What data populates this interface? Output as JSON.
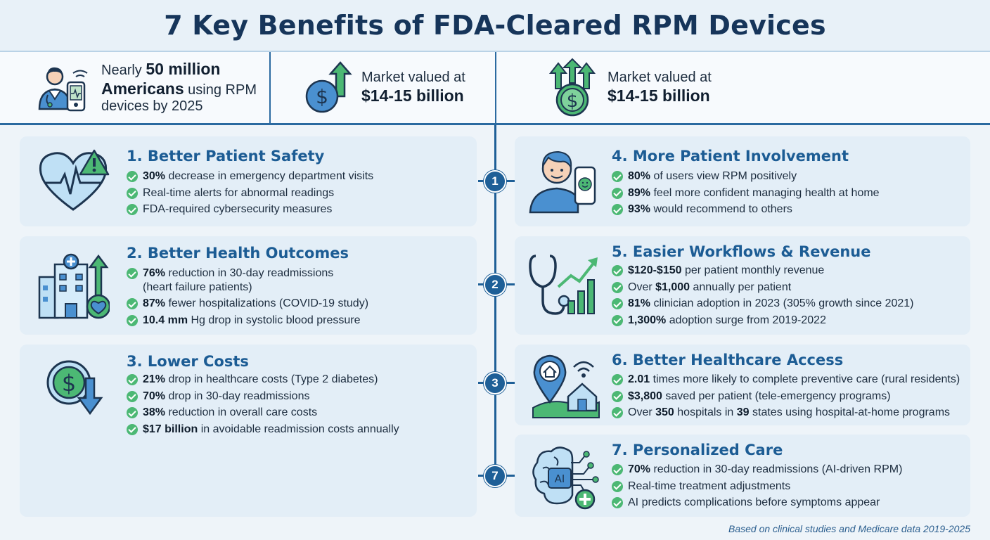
{
  "title": "7 Key Benefits of FDA-Cleared RPM Devices",
  "stats": [
    {
      "icon": "doctor-with-device-icon",
      "parts": [
        {
          "t": "Nearly "
        },
        {
          "t": "50 million",
          "b": true
        },
        {
          "t": " "
        },
        {
          "t": "Americans",
          "b": true
        },
        {
          "t": " using RPM devices by 2025"
        }
      ]
    },
    {
      "icon": "dollar-growth-icon",
      "parts": [
        {
          "t": "Market valued at "
        },
        {
          "t": "$14-15 billion",
          "b": true
        }
      ]
    },
    {
      "icon": "dollar-triple-arrows-icon",
      "parts": [
        {
          "t": "Market valued at "
        },
        {
          "t": "$14-15 billion",
          "b": true
        }
      ]
    }
  ],
  "timeline_nodes": [
    "1",
    "2",
    "3",
    "7"
  ],
  "benefits": [
    {
      "title": "1. Better Patient Safety",
      "icon": "heart-warning-icon",
      "items": [
        [
          {
            "t": "30%",
            "b": true
          },
          {
            "t": " decrease in emergency department visits"
          }
        ],
        [
          {
            "t": "Real-time alerts for abnormal readings"
          }
        ],
        [
          {
            "t": "FDA-required cybersecurity measures"
          }
        ]
      ]
    },
    {
      "title": "2. Better Health Outcomes",
      "icon": "hospital-heart-icon",
      "items": [
        [
          {
            "t": "76%",
            "b": true
          },
          {
            "t": " reduction in 30-day readmissions"
          },
          {
            "t": "(heart failure patients)",
            "sub": true
          }
        ],
        [
          {
            "t": "87%",
            "b": true
          },
          {
            "t": " fewer hospitalizations (COVID-19 study)"
          }
        ],
        [
          {
            "t": "10.4 mm",
            "b": true
          },
          {
            "t": " Hg drop in systolic blood pressure"
          }
        ]
      ]
    },
    {
      "title": "3. Lower Costs",
      "icon": "dollar-down-icon",
      "items": [
        [
          {
            "t": "21%",
            "b": true
          },
          {
            "t": " drop in healthcare costs (Type 2 diabetes)"
          }
        ],
        [
          {
            "t": "70%",
            "b": true
          },
          {
            "t": " drop in 30-day readmissions"
          }
        ],
        [
          {
            "t": "38%",
            "b": true
          },
          {
            "t": " reduction in overall care costs"
          }
        ],
        [
          {
            "t": "$17 billion",
            "b": true
          },
          {
            "t": " in avoidable readmission costs annually"
          }
        ]
      ]
    },
    {
      "title": "4. More Patient Involvement",
      "icon": "patient-phone-icon",
      "items": [
        [
          {
            "t": "80%",
            "b": true
          },
          {
            "t": " of users view RPM positively"
          }
        ],
        [
          {
            "t": "89%",
            "b": true
          },
          {
            "t": " feel more confident managing health at home"
          }
        ],
        [
          {
            "t": "93%",
            "b": true
          },
          {
            "t": " would recommend to others"
          }
        ]
      ]
    },
    {
      "title": "5. Easier Workflows & Revenue",
      "icon": "stethoscope-chart-icon",
      "items": [
        [
          {
            "t": "$120-$150",
            "b": true
          },
          {
            "t": " per patient monthly revenue"
          }
        ],
        [
          {
            "t": "Over "
          },
          {
            "t": "$1,000",
            "b": true
          },
          {
            "t": " annually per patient"
          }
        ],
        [
          {
            "t": "81%",
            "b": true
          },
          {
            "t": " clinician adoption in 2023 (305% growth since 2021)"
          }
        ],
        [
          {
            "t": "1,300%",
            "b": true
          },
          {
            "t": " adoption surge from 2019-2022"
          }
        ]
      ]
    },
    {
      "title": "6. Better Healthcare Access",
      "icon": "home-location-icon",
      "items": [
        [
          {
            "t": "2.01",
            "b": true
          },
          {
            "t": " times more likely to complete preventive care (rural residents)"
          }
        ],
        [
          {
            "t": "$3,800",
            "b": true
          },
          {
            "t": " saved per patient (tele-emergency programs)"
          }
        ],
        [
          {
            "t": "Over "
          },
          {
            "t": "350",
            "b": true
          },
          {
            "t": " hospitals in "
          },
          {
            "t": "39",
            "b": true
          },
          {
            "t": " states using hospital-at-home programs"
          }
        ]
      ]
    },
    {
      "title": "7. Personalized Care",
      "icon": "ai-brain-icon",
      "items": [
        [
          {
            "t": "70%",
            "b": true
          },
          {
            "t": " reduction in 30-day readmissions (AI-driven RPM)"
          }
        ],
        [
          {
            "t": "Real-time treatment adjustments"
          }
        ],
        [
          {
            "t": "AI predicts complications before symptoms appear"
          }
        ]
      ]
    }
  ],
  "footer": "Based on clinical studies and Medicare data 2019-2025",
  "colors": {
    "accent": "#1e5f97",
    "title": "#16355a",
    "check": "#4cb874",
    "card": "#e3eef7",
    "icon_green": "#4cb874",
    "icon_blue": "#3d86c6"
  }
}
